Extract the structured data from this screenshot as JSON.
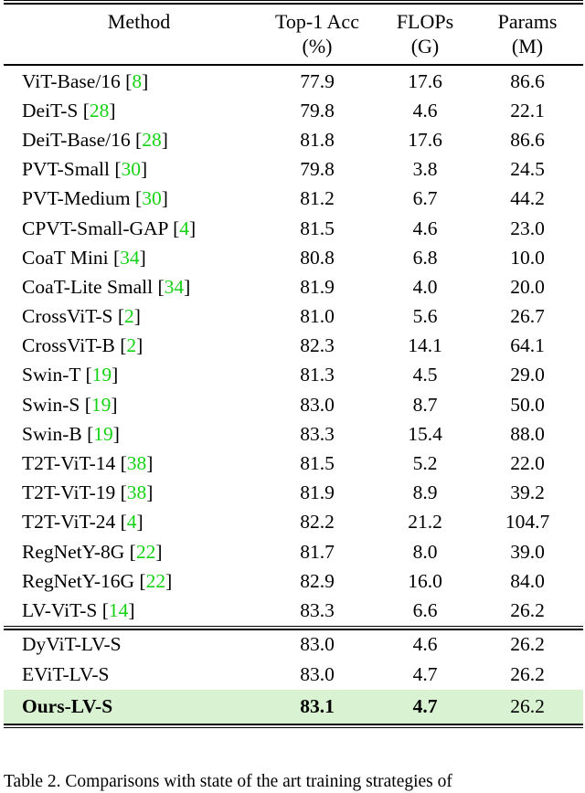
{
  "table": {
    "header": {
      "method": "Method",
      "top1": {
        "line1": "Top-1 Acc",
        "line2": "(%)"
      },
      "flops": {
        "line1": "FLOPs",
        "line2": "(G)"
      },
      "params": {
        "line1": "Params",
        "line2": "(M)"
      }
    },
    "cite_brackets": [
      "[",
      "]"
    ],
    "colors": {
      "citation_green": "#15d215",
      "highlight_green": "#d9f3d2"
    },
    "rows": [
      {
        "method": "ViT-Base/16",
        "cite": "8",
        "top1": "77.9",
        "flops": "17.6",
        "params": "86.6"
      },
      {
        "method": "DeiT-S",
        "cite": "28",
        "top1": "79.8",
        "flops": "4.6",
        "params": "22.1"
      },
      {
        "method": "DeiT-Base/16",
        "cite": "28",
        "top1": "81.8",
        "flops": "17.6",
        "params": "86.6"
      },
      {
        "method": "PVT-Small",
        "cite": "30",
        "top1": "79.8",
        "flops": "3.8",
        "params": "24.5"
      },
      {
        "method": "PVT-Medium",
        "cite": "30",
        "top1": "81.2",
        "flops": "6.7",
        "params": "44.2"
      },
      {
        "method": "CPVT-Small-GAP",
        "cite": "4",
        "top1": "81.5",
        "flops": "4.6",
        "params": "23.0"
      },
      {
        "method": "CoaT Mini",
        "cite": "34",
        "top1": "80.8",
        "flops": "6.8",
        "params": "10.0"
      },
      {
        "method": "CoaT-Lite Small",
        "cite": "34",
        "top1": "81.9",
        "flops": "4.0",
        "params": "20.0"
      },
      {
        "method": "CrossViT-S",
        "cite": "2",
        "top1": "81.0",
        "flops": "5.6",
        "params": "26.7"
      },
      {
        "method": "CrossViT-B",
        "cite": "2",
        "top1": "82.3",
        "flops": "14.1",
        "params": "64.1"
      },
      {
        "method": "Swin-T",
        "cite": "19",
        "top1": "81.3",
        "flops": "4.5",
        "params": "29.0"
      },
      {
        "method": "Swin-S",
        "cite": "19",
        "top1": "83.0",
        "flops": "8.7",
        "params": "50.0"
      },
      {
        "method": "Swin-B",
        "cite": "19",
        "top1": "83.3",
        "flops": "15.4",
        "params": "88.0"
      },
      {
        "method": "T2T-ViT-14",
        "cite": "38",
        "top1": "81.5",
        "flops": "5.2",
        "params": "22.0"
      },
      {
        "method": "T2T-ViT-19",
        "cite": "38",
        "top1": "81.9",
        "flops": "8.9",
        "params": "39.2"
      },
      {
        "method": "T2T-ViT-24",
        "cite": "4",
        "top1": "82.2",
        "flops": "21.2",
        "params": "104.7"
      },
      {
        "method": "RegNetY-8G",
        "cite": "22",
        "top1": "81.7",
        "flops": "8.0",
        "params": "39.0"
      },
      {
        "method": "RegNetY-16G",
        "cite": "22",
        "top1": "82.9",
        "flops": "16.0",
        "params": "84.0"
      },
      {
        "method": "LV-ViT-S",
        "cite": "14",
        "top1": "83.3",
        "flops": "6.6",
        "params": "26.2"
      }
    ],
    "rows2": [
      {
        "method": "DyViT-LV-S",
        "cite": "",
        "top1": "83.0",
        "flops": "4.6",
        "params": "26.2",
        "highlight": false,
        "bold": false
      },
      {
        "method": "EViT-LV-S",
        "cite": "",
        "top1": "83.0",
        "flops": "4.7",
        "params": "26.2",
        "highlight": false,
        "bold": false
      },
      {
        "method": "Ours-LV-S",
        "cite": "",
        "top1": "83.1",
        "flops": "4.7",
        "params": "26.2",
        "highlight": true,
        "bold": true
      }
    ]
  },
  "caption": {
    "text": "Table 2. Comparisons with state of the art training strategies of"
  }
}
